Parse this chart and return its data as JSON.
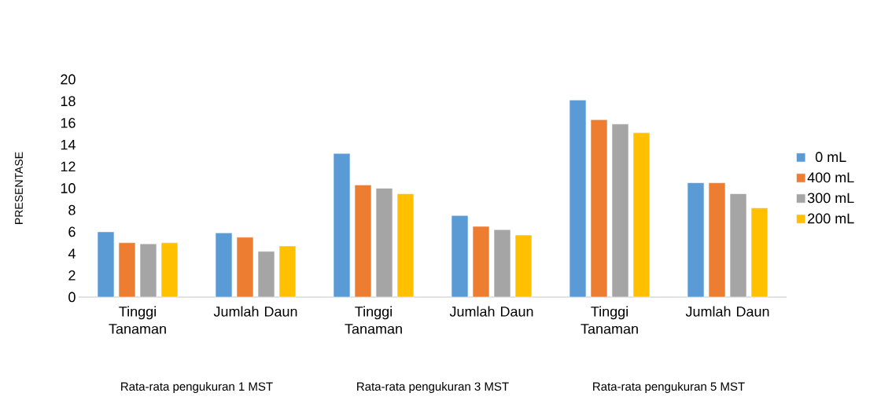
{
  "chart_data": {
    "type": "bar",
    "ylabel": "PRESENTASE",
    "categories": [
      "Tinggi Tanaman",
      "Jumlah Daun",
      "Tinggi Tanaman",
      "Jumlah Daun",
      "Tinggi Tanaman",
      "Jumlah Daun"
    ],
    "series": [
      {
        "name": "0 mL",
        "color": "#5b9bd5",
        "values": [
          6.0,
          5.9,
          13.2,
          7.5,
          18.1,
          10.5
        ]
      },
      {
        "name": "400 mL",
        "color": "#ed7d31",
        "values": [
          5.0,
          5.5,
          10.3,
          6.5,
          16.3,
          10.5
        ]
      },
      {
        "name": "300 mL",
        "color": "#a5a5a5",
        "values": [
          4.9,
          4.2,
          10.0,
          6.2,
          15.9,
          9.5
        ]
      },
      {
        "name": "200 mL",
        "color": "#ffc000",
        "values": [
          5.0,
          4.7,
          9.5,
          5.7,
          15.1,
          8.2
        ]
      }
    ],
    "ylim": [
      0,
      20
    ],
    "yticks": [
      0,
      2,
      4,
      6,
      8,
      10,
      12,
      14,
      16,
      18,
      20
    ],
    "legend": "right",
    "annotations": [
      "Rata-rata pengukuran 1 MST",
      "Rata-rata pengukuran 3 MST",
      "Rata-rata pengukuran 5 MST"
    ]
  }
}
